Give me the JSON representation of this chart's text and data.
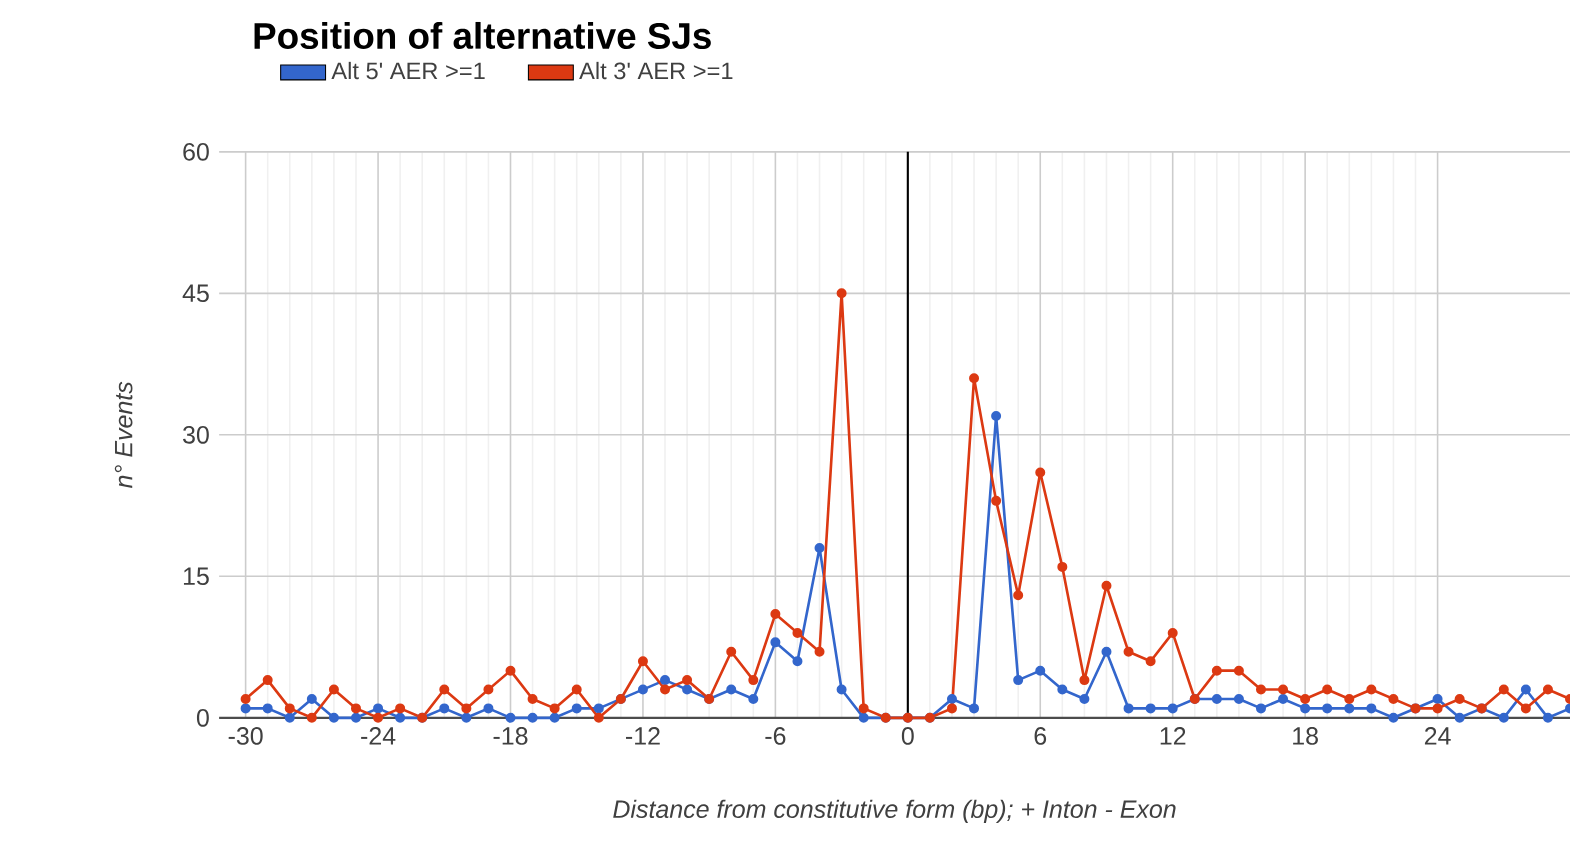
{
  "chart_data": {
    "type": "line",
    "title": "Position of alternative SJs",
    "xlabel": "Distance from constitutive form (bp); + Inton - Exon",
    "ylabel": "n° Events",
    "x": [
      -30,
      -29,
      -28,
      -27,
      -26,
      -25,
      -24,
      -23,
      -22,
      -21,
      -20,
      -19,
      -18,
      -17,
      -16,
      -15,
      -14,
      -13,
      -12,
      -11,
      -10,
      -9,
      -8,
      -7,
      -6,
      -5,
      -4,
      -3,
      -2,
      -1,
      0,
      1,
      2,
      3,
      4,
      5,
      6,
      7,
      8,
      9,
      10,
      11,
      12,
      13,
      14,
      15,
      16,
      17,
      18,
      19,
      20,
      21,
      22,
      23,
      24,
      25,
      26,
      27,
      28,
      29,
      30
    ],
    "series": [
      {
        "name": "Alt 5' AER >=1",
        "color": "#3366cc",
        "values": [
          1,
          1,
          0,
          2,
          0,
          0,
          1,
          0,
          0,
          1,
          0,
          1,
          0,
          0,
          0,
          1,
          1,
          2,
          3,
          4,
          3,
          2,
          3,
          2,
          8,
          6,
          18,
          3,
          0,
          0,
          0,
          0,
          2,
          1,
          32,
          4,
          5,
          3,
          2,
          7,
          1,
          1,
          1,
          2,
          2,
          2,
          1,
          2,
          1,
          1,
          1,
          1,
          0,
          1,
          2,
          0,
          1,
          0,
          3,
          0,
          1
        ]
      },
      {
        "name": "Alt 3' AER >=1",
        "color": "#dc3912",
        "values": [
          2,
          4,
          1,
          0,
          3,
          1,
          0,
          1,
          0,
          3,
          1,
          3,
          5,
          2,
          1,
          3,
          0,
          2,
          6,
          3,
          4,
          2,
          7,
          4,
          11,
          9,
          7,
          45,
          1,
          0,
          0,
          0,
          1,
          36,
          23,
          13,
          26,
          16,
          4,
          14,
          7,
          6,
          9,
          2,
          5,
          5,
          3,
          3,
          2,
          3,
          2,
          3,
          2,
          1,
          1,
          2,
          1,
          3,
          1,
          3,
          2
        ]
      }
    ],
    "xlim": [
      -31.2,
      30
    ],
    "ylim": [
      0,
      60
    ],
    "xticks": [
      -30,
      -24,
      -18,
      -12,
      -6,
      0,
      6,
      12,
      18,
      24
    ],
    "yticks": [
      0,
      15,
      30,
      45,
      60
    ],
    "ref_lines": [
      {
        "axis": "x",
        "value": 0,
        "color": "#000000"
      }
    ],
    "grid": true,
    "legend": "top",
    "marker": "circle",
    "line_style": "solid"
  }
}
